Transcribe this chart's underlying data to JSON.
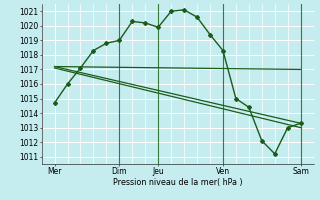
{
  "background_color": "#c5ecee",
  "grid_color": "#ffffff",
  "line_color": "#1a5c1a",
  "xlabel": "Pression niveau de la mer( hPa )",
  "ylim": [
    1010.5,
    1021.5
  ],
  "yticks": [
    1011,
    1012,
    1013,
    1014,
    1015,
    1016,
    1017,
    1018,
    1019,
    1020,
    1021
  ],
  "xlim": [
    0,
    10.5
  ],
  "xtick_positions": [
    0.5,
    3.0,
    4.5,
    7.0,
    10.0
  ],
  "xtick_labels": [
    "Mer",
    "Dim",
    "Jeu",
    "Ven",
    "Sam"
  ],
  "x_vlines": [
    3.0,
    4.5,
    7.0,
    10.0
  ],
  "series1_x": [
    0.5,
    1.0,
    1.5,
    2.0,
    2.5,
    3.0,
    3.5,
    4.0,
    4.5,
    5.0,
    5.5,
    6.0,
    6.5,
    7.0,
    7.5,
    8.0,
    8.5,
    9.0,
    9.5,
    10.0
  ],
  "series1_y": [
    1014.7,
    1016.0,
    1017.1,
    1018.3,
    1018.8,
    1019.0,
    1020.3,
    1020.2,
    1019.9,
    1021.0,
    1021.1,
    1020.6,
    1019.4,
    1018.3,
    1015.0,
    1014.4,
    1012.1,
    1011.2,
    1013.0,
    1013.3
  ],
  "series2_x": [
    0.5,
    10.0
  ],
  "series2_y": [
    1017.2,
    1017.0
  ],
  "series3_x": [
    0.5,
    10.0
  ],
  "series3_y": [
    1017.2,
    1013.3
  ],
  "series4_x": [
    0.5,
    10.0
  ],
  "series4_y": [
    1017.1,
    1013.0
  ]
}
